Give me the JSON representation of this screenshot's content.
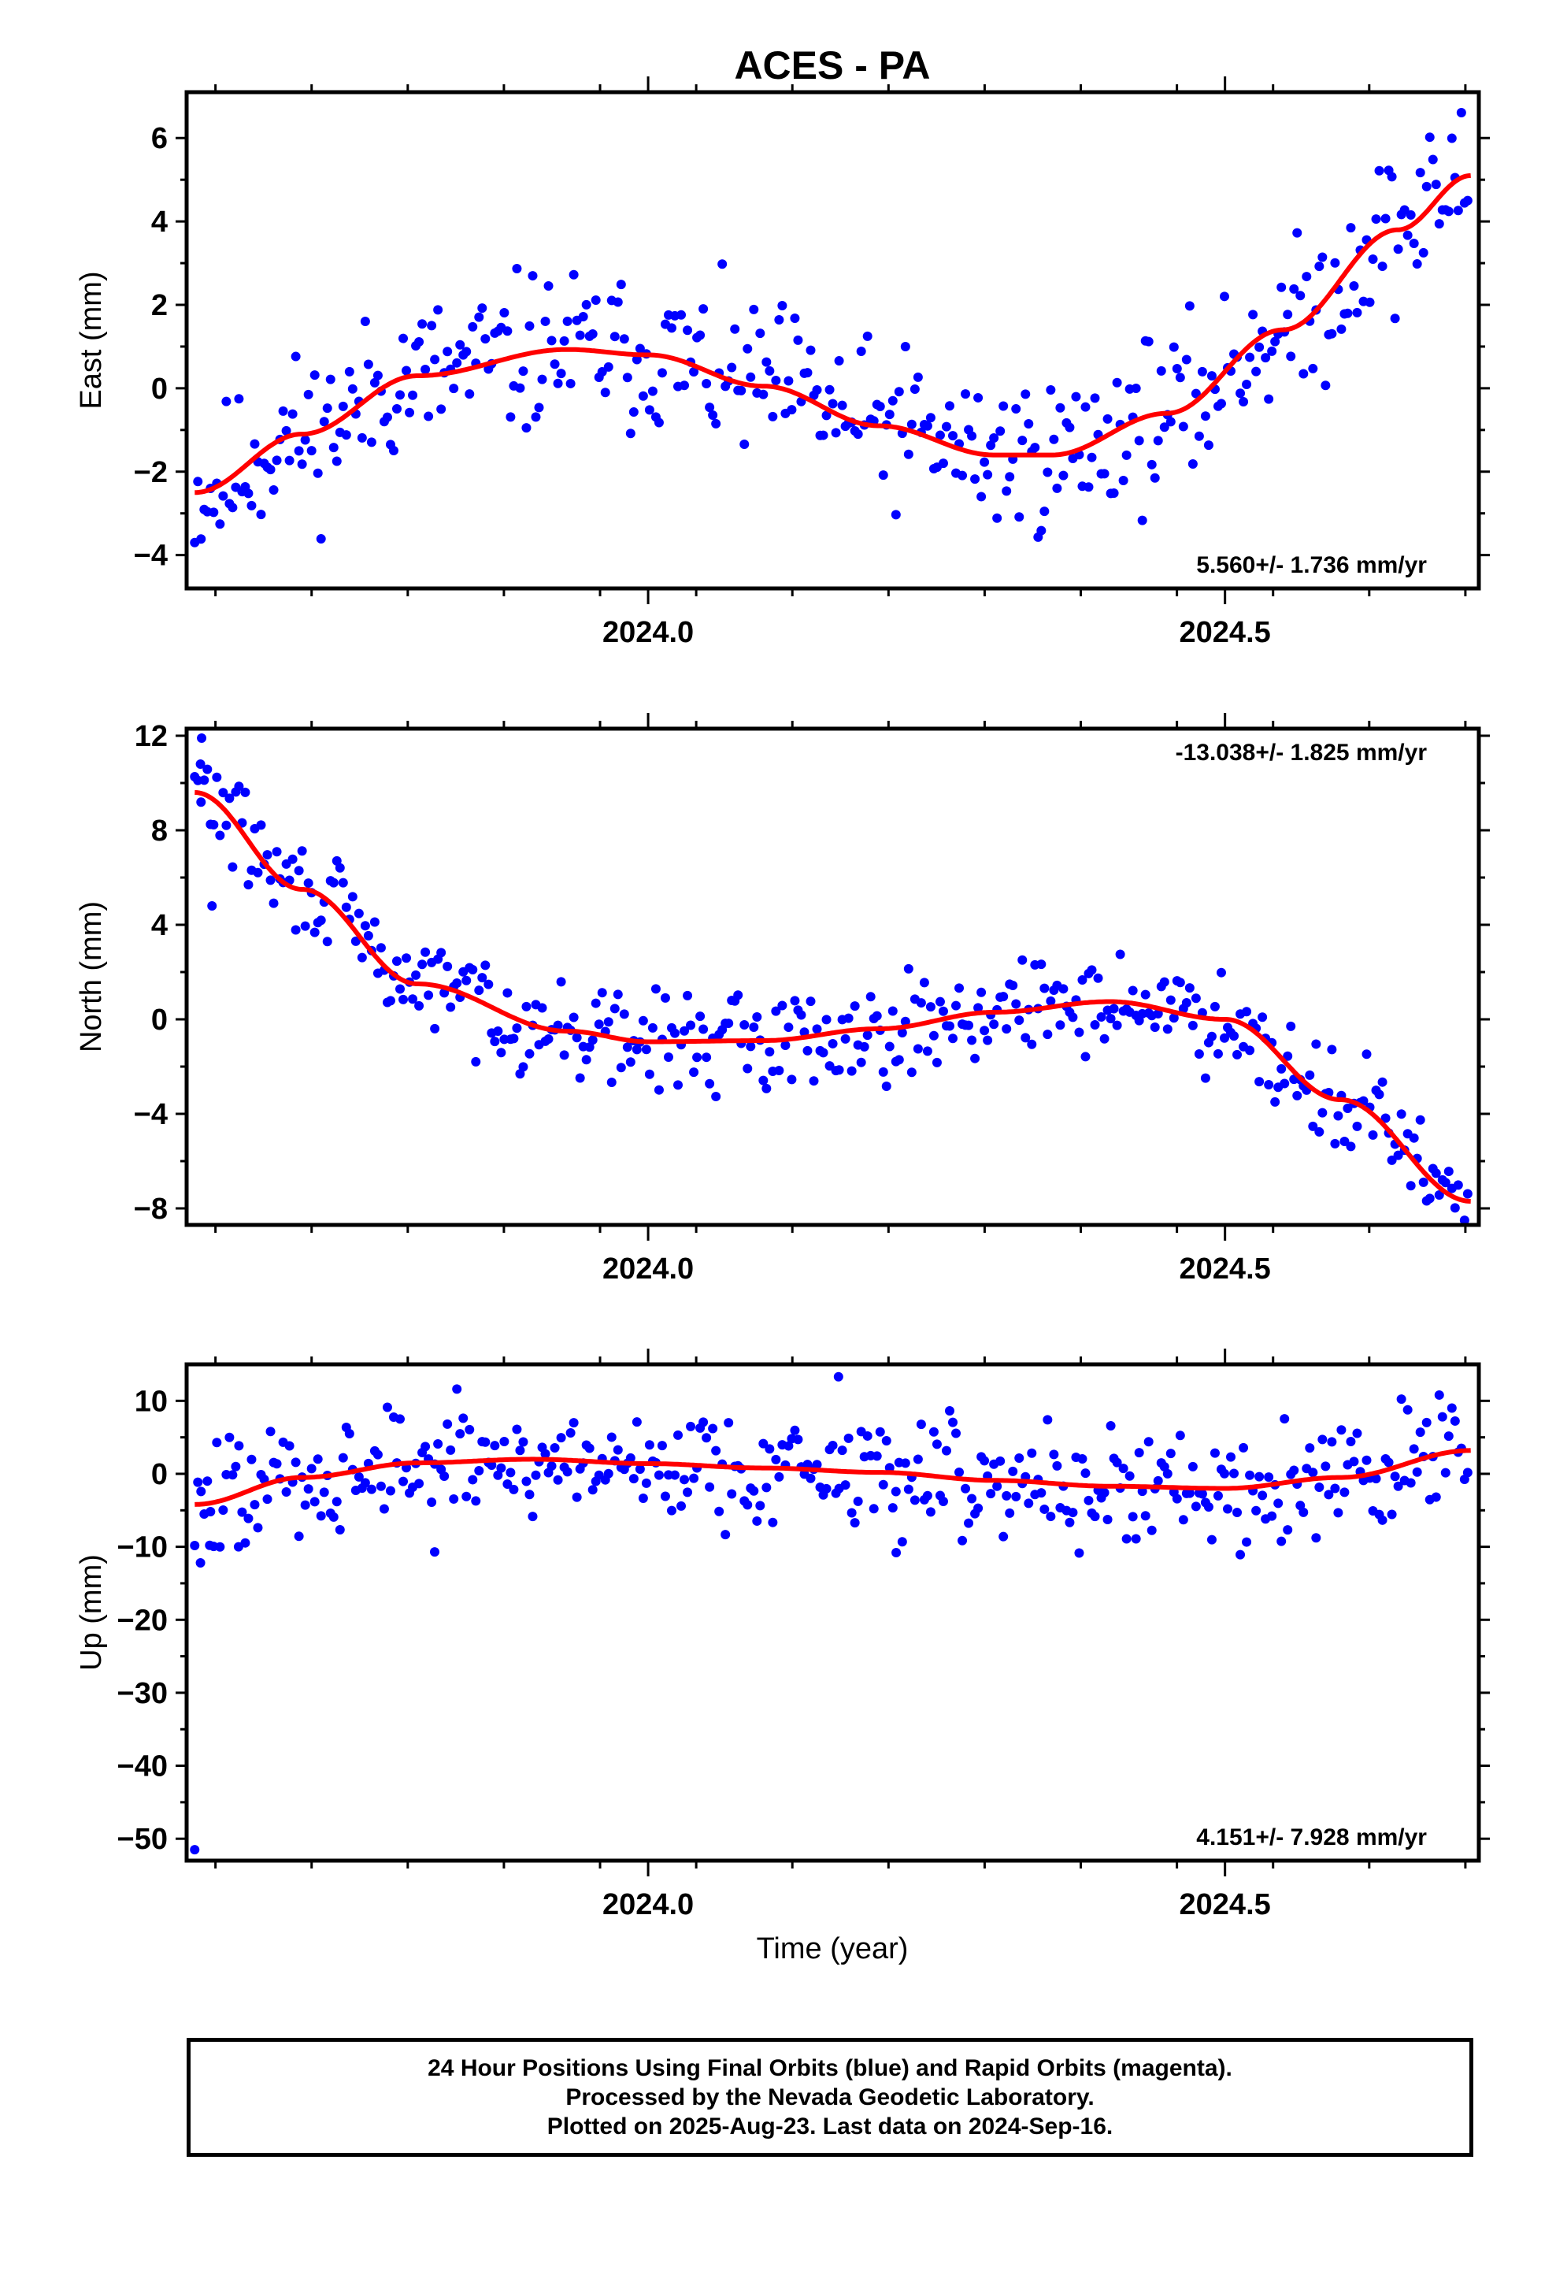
{
  "chart_data": {
    "type": "scatter",
    "title": "ACES - PA",
    "xlabel": "Time (year)",
    "xlim": [
      2023.6,
      2024.72
    ],
    "x_ticks": [
      "2024.0",
      "2024.5"
    ],
    "colors": {
      "points": "#0000ff",
      "fit": "#ff0000",
      "frame": "#000000"
    },
    "panels": [
      {
        "ylabel": "East (mm)",
        "ylim": [
          -4.8,
          7.1
        ],
        "yticks": [
          -4,
          -2,
          0,
          2,
          4,
          6
        ],
        "rate_label": "5.560+/- 1.736 mm/yr",
        "rate_position": "bottom-right",
        "fit_control": [
          [
            2023.607,
            -2.5
          ],
          [
            2023.7,
            -1.1
          ],
          [
            2023.8,
            0.3
          ],
          [
            2023.93,
            0.93
          ],
          [
            2024.0,
            0.8
          ],
          [
            2024.1,
            0.05
          ],
          [
            2024.2,
            -0.9
          ],
          [
            2024.3,
            -1.6
          ],
          [
            2024.35,
            -1.6
          ],
          [
            2024.45,
            -0.6
          ],
          [
            2024.55,
            1.4
          ],
          [
            2024.65,
            3.8
          ],
          [
            2024.713,
            5.1
          ]
        ],
        "noise": 0.95,
        "seed": 11,
        "outliers": []
      },
      {
        "ylabel": "North (mm)",
        "ylim": [
          -8.7,
          12.3
        ],
        "yticks": [
          -8,
          -4,
          0,
          4,
          8,
          12
        ],
        "rate_label": "-13.038+/- 1.825 mm/yr",
        "rate_position": "top-right",
        "fit_control": [
          [
            2023.607,
            9.6
          ],
          [
            2023.7,
            5.5
          ],
          [
            2023.8,
            1.5
          ],
          [
            2023.93,
            -0.5
          ],
          [
            2024.0,
            -0.95
          ],
          [
            2024.1,
            -0.9
          ],
          [
            2024.2,
            -0.4
          ],
          [
            2024.3,
            0.3
          ],
          [
            2024.4,
            0.75
          ],
          [
            2024.5,
            0.0
          ],
          [
            2024.6,
            -3.4
          ],
          [
            2024.713,
            -7.7
          ]
        ],
        "noise": 1.0,
        "seed": 29,
        "outliers": [
          [
            2023.613,
            11.9
          ],
          [
            2023.612,
            10.8
          ],
          [
            2023.622,
            4.8
          ]
        ]
      },
      {
        "ylabel": "Up (mm)",
        "ylim": [
          -53,
          15
        ],
        "yticks": [
          -50,
          -40,
          -30,
          -20,
          -10,
          0,
          10
        ],
        "rate_label": "4.151+/- 7.928 mm/yr",
        "rate_position": "bottom-right",
        "fit_control": [
          [
            2023.607,
            -4.2
          ],
          [
            2023.7,
            -0.5
          ],
          [
            2023.8,
            1.5
          ],
          [
            2023.9,
            2.0
          ],
          [
            2024.0,
            1.4
          ],
          [
            2024.1,
            0.8
          ],
          [
            2024.2,
            0.2
          ],
          [
            2024.3,
            -0.9
          ],
          [
            2024.4,
            -1.7
          ],
          [
            2024.5,
            -2.0
          ],
          [
            2024.6,
            -0.5
          ],
          [
            2024.713,
            3.2
          ]
        ],
        "noise": 4.0,
        "seed": 47,
        "outliers": [
          [
            2023.607,
            -51.5
          ],
          [
            2023.612,
            -12.2
          ],
          [
            2023.62,
            -9.8
          ],
          [
            2023.645,
            -10.0
          ],
          [
            2023.815,
            -10.7
          ],
          [
            2024.215,
            -10.8
          ],
          [
            2024.165,
            13.3
          ]
        ]
      }
    ]
  },
  "footer": {
    "line1": "24 Hour Positions Using Final Orbits (blue) and Rapid Orbits (magenta).",
    "line2": "Processed by the Nevada Geodetic Laboratory.",
    "line3": "Plotted on 2025-Aug-23. Last data on 2024-Sep-16."
  }
}
